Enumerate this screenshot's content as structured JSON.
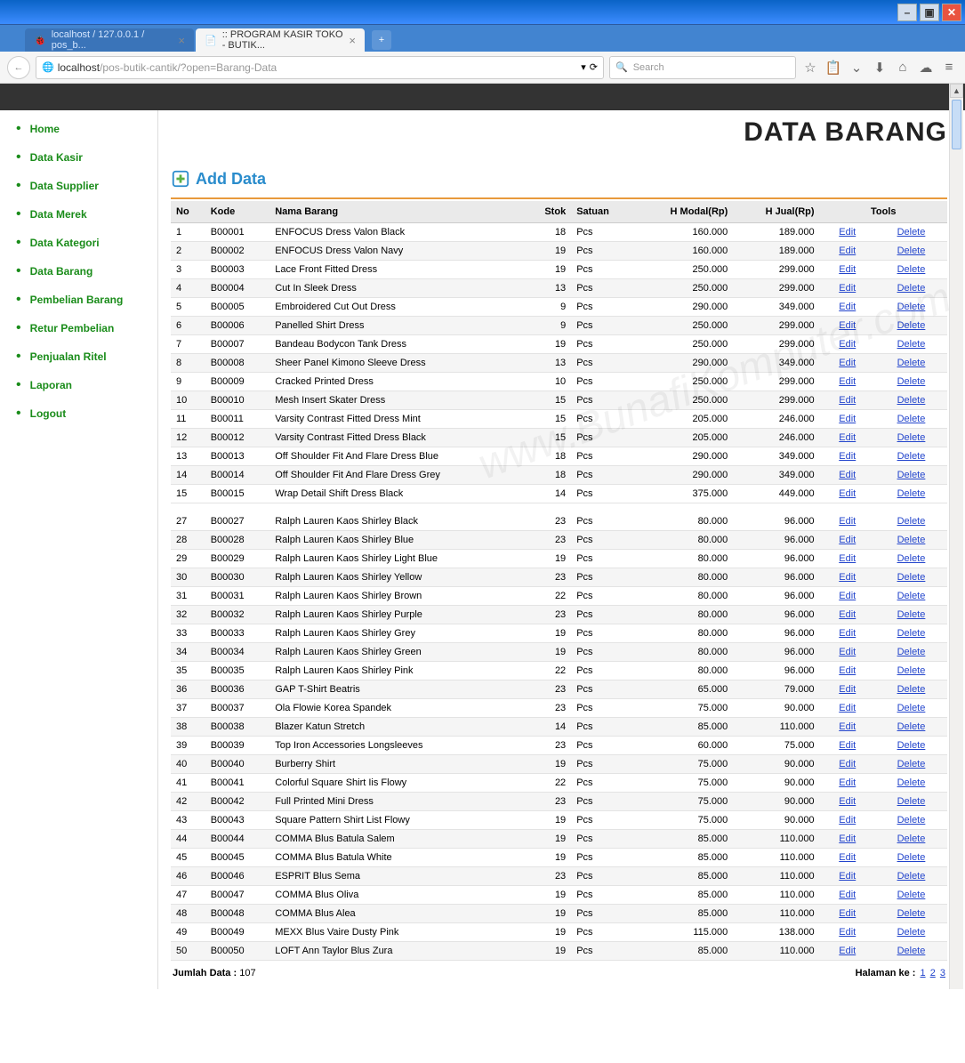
{
  "window": {
    "minimize": "–",
    "maximize": "▣",
    "close": "✕"
  },
  "tabs": {
    "inactive": "localhost / 127.0.0.1 / pos_b...",
    "active": ":: PROGRAM KASIR TOKO - BUTIK...",
    "add": "+"
  },
  "toolbar": {
    "back": "←",
    "globe": "🌐",
    "url_host": "localhost",
    "url_path": "/pos-butik-cantik/?open=Barang-Data",
    "reload": "⟳",
    "search_placeholder": "Search",
    "search_icon": "🔍",
    "star": "☆",
    "clipboard": "📋",
    "pocket": "⌄",
    "download": "⬇",
    "home": "⌂",
    "sync": "☁",
    "menu": "≡"
  },
  "sidebar": {
    "items": [
      "Home",
      "Data Kasir",
      "Data Supplier",
      "Data Merek",
      "Data Kategori",
      "Data Barang",
      "Pembelian Barang",
      "Retur Pembelian",
      "Penjualan Ritel",
      "Laporan",
      "Logout"
    ]
  },
  "page": {
    "title": "DATA BARANG",
    "add_label": "Add Data"
  },
  "table": {
    "headers": {
      "no": "No",
      "kode": "Kode",
      "nama": "Nama Barang",
      "stok": "Stok",
      "satuan": "Satuan",
      "modal": "H Modal(Rp)",
      "jual": "H Jual(Rp)",
      "tools": "Tools"
    },
    "edit": "Edit",
    "delete": "Delete",
    "rows_top": [
      {
        "no": "1",
        "kode": "B00001",
        "nama": "ENFOCUS Dress Valon Black",
        "stok": "18",
        "sat": "Pcs",
        "m": "160.000",
        "j": "189.000"
      },
      {
        "no": "2",
        "kode": "B00002",
        "nama": "ENFOCUS Dress Valon Navy",
        "stok": "19",
        "sat": "Pcs",
        "m": "160.000",
        "j": "189.000"
      },
      {
        "no": "3",
        "kode": "B00003",
        "nama": "Lace Front Fitted Dress",
        "stok": "19",
        "sat": "Pcs",
        "m": "250.000",
        "j": "299.000"
      },
      {
        "no": "4",
        "kode": "B00004",
        "nama": "Cut In Sleek Dress",
        "stok": "13",
        "sat": "Pcs",
        "m": "250.000",
        "j": "299.000"
      },
      {
        "no": "5",
        "kode": "B00005",
        "nama": "Embroidered Cut Out Dress",
        "stok": "9",
        "sat": "Pcs",
        "m": "290.000",
        "j": "349.000"
      },
      {
        "no": "6",
        "kode": "B00006",
        "nama": "Panelled Shirt Dress",
        "stok": "9",
        "sat": "Pcs",
        "m": "250.000",
        "j": "299.000"
      },
      {
        "no": "7",
        "kode": "B00007",
        "nama": "Bandeau Bodycon Tank Dress",
        "stok": "19",
        "sat": "Pcs",
        "m": "250.000",
        "j": "299.000"
      },
      {
        "no": "8",
        "kode": "B00008",
        "nama": "Sheer Panel Kimono Sleeve Dress",
        "stok": "13",
        "sat": "Pcs",
        "m": "290.000",
        "j": "349.000"
      },
      {
        "no": "9",
        "kode": "B00009",
        "nama": "Cracked Printed Dress",
        "stok": "10",
        "sat": "Pcs",
        "m": "250.000",
        "j": "299.000"
      },
      {
        "no": "10",
        "kode": "B00010",
        "nama": "Mesh Insert Skater Dress",
        "stok": "15",
        "sat": "Pcs",
        "m": "250.000",
        "j": "299.000"
      },
      {
        "no": "11",
        "kode": "B00011",
        "nama": "Varsity Contrast Fitted Dress Mint",
        "stok": "15",
        "sat": "Pcs",
        "m": "205.000",
        "j": "246.000"
      },
      {
        "no": "12",
        "kode": "B00012",
        "nama": "Varsity Contrast Fitted Dress Black",
        "stok": "15",
        "sat": "Pcs",
        "m": "205.000",
        "j": "246.000"
      },
      {
        "no": "13",
        "kode": "B00013",
        "nama": "Off Shoulder Fit And Flare Dress Blue",
        "stok": "18",
        "sat": "Pcs",
        "m": "290.000",
        "j": "349.000"
      },
      {
        "no": "14",
        "kode": "B00014",
        "nama": "Off Shoulder Fit And Flare Dress Grey",
        "stok": "18",
        "sat": "Pcs",
        "m": "290.000",
        "j": "349.000"
      },
      {
        "no": "15",
        "kode": "B00015",
        "nama": "Wrap Detail Shift Dress Black",
        "stok": "14",
        "sat": "Pcs",
        "m": "375.000",
        "j": "449.000"
      }
    ],
    "rows_bottom": [
      {
        "no": "27",
        "kode": "B00027",
        "nama": "Ralph Lauren Kaos Shirley Black",
        "stok": "23",
        "sat": "Pcs",
        "m": "80.000",
        "j": "96.000"
      },
      {
        "no": "28",
        "kode": "B00028",
        "nama": "Ralph Lauren Kaos Shirley Blue",
        "stok": "23",
        "sat": "Pcs",
        "m": "80.000",
        "j": "96.000"
      },
      {
        "no": "29",
        "kode": "B00029",
        "nama": "Ralph Lauren Kaos Shirley Light Blue",
        "stok": "19",
        "sat": "Pcs",
        "m": "80.000",
        "j": "96.000"
      },
      {
        "no": "30",
        "kode": "B00030",
        "nama": "Ralph Lauren Kaos Shirley Yellow",
        "stok": "23",
        "sat": "Pcs",
        "m": "80.000",
        "j": "96.000"
      },
      {
        "no": "31",
        "kode": "B00031",
        "nama": "Ralph Lauren Kaos Shirley Brown",
        "stok": "22",
        "sat": "Pcs",
        "m": "80.000",
        "j": "96.000"
      },
      {
        "no": "32",
        "kode": "B00032",
        "nama": "Ralph Lauren Kaos Shirley Purple",
        "stok": "23",
        "sat": "Pcs",
        "m": "80.000",
        "j": "96.000"
      },
      {
        "no": "33",
        "kode": "B00033",
        "nama": "Ralph Lauren Kaos Shirley Grey",
        "stok": "19",
        "sat": "Pcs",
        "m": "80.000",
        "j": "96.000"
      },
      {
        "no": "34",
        "kode": "B00034",
        "nama": "Ralph Lauren Kaos Shirley Green",
        "stok": "19",
        "sat": "Pcs",
        "m": "80.000",
        "j": "96.000"
      },
      {
        "no": "35",
        "kode": "B00035",
        "nama": "Ralph Lauren Kaos Shirley Pink",
        "stok": "22",
        "sat": "Pcs",
        "m": "80.000",
        "j": "96.000"
      },
      {
        "no": "36",
        "kode": "B00036",
        "nama": "GAP T-Shirt Beatris",
        "stok": "23",
        "sat": "Pcs",
        "m": "65.000",
        "j": "79.000"
      },
      {
        "no": "37",
        "kode": "B00037",
        "nama": "Ola Flowie Korea Spandek",
        "stok": "23",
        "sat": "Pcs",
        "m": "75.000",
        "j": "90.000"
      },
      {
        "no": "38",
        "kode": "B00038",
        "nama": "Blazer Katun Stretch",
        "stok": "14",
        "sat": "Pcs",
        "m": "85.000",
        "j": "110.000"
      },
      {
        "no": "39",
        "kode": "B00039",
        "nama": "Top Iron Accessories Longsleeves",
        "stok": "23",
        "sat": "Pcs",
        "m": "60.000",
        "j": "75.000"
      },
      {
        "no": "40",
        "kode": "B00040",
        "nama": "Burberry Shirt",
        "stok": "19",
        "sat": "Pcs",
        "m": "75.000",
        "j": "90.000"
      },
      {
        "no": "41",
        "kode": "B00041",
        "nama": "Colorful Square Shirt Iis Flowy",
        "stok": "22",
        "sat": "Pcs",
        "m": "75.000",
        "j": "90.000"
      },
      {
        "no": "42",
        "kode": "B00042",
        "nama": "Full Printed Mini Dress",
        "stok": "23",
        "sat": "Pcs",
        "m": "75.000",
        "j": "90.000"
      },
      {
        "no": "43",
        "kode": "B00043",
        "nama": "Square Pattern Shirt List Flowy",
        "stok": "19",
        "sat": "Pcs",
        "m": "75.000",
        "j": "90.000"
      },
      {
        "no": "44",
        "kode": "B00044",
        "nama": "COMMA Blus Batula Salem",
        "stok": "19",
        "sat": "Pcs",
        "m": "85.000",
        "j": "110.000"
      },
      {
        "no": "45",
        "kode": "B00045",
        "nama": "COMMA Blus Batula White",
        "stok": "19",
        "sat": "Pcs",
        "m": "85.000",
        "j": "110.000"
      },
      {
        "no": "46",
        "kode": "B00046",
        "nama": "ESPRIT Blus Sema",
        "stok": "23",
        "sat": "Pcs",
        "m": "85.000",
        "j": "110.000"
      },
      {
        "no": "47",
        "kode": "B00047",
        "nama": "COMMA Blus Oliva",
        "stok": "19",
        "sat": "Pcs",
        "m": "85.000",
        "j": "110.000"
      },
      {
        "no": "48",
        "kode": "B00048",
        "nama": "COMMA Blus Alea",
        "stok": "19",
        "sat": "Pcs",
        "m": "85.000",
        "j": "110.000"
      },
      {
        "no": "49",
        "kode": "B00049",
        "nama": "MEXX Blus Vaire Dusty Pink",
        "stok": "19",
        "sat": "Pcs",
        "m": "115.000",
        "j": "138.000"
      },
      {
        "no": "50",
        "kode": "B00050",
        "nama": "LOFT Ann Taylor Blus Zura",
        "stok": "19",
        "sat": "Pcs",
        "m": "85.000",
        "j": "110.000"
      }
    ]
  },
  "footer": {
    "total_label": "Jumlah Data :",
    "total_value": "107",
    "page_label": "Halaman ke :",
    "pages": [
      "1",
      "2",
      "3"
    ]
  }
}
